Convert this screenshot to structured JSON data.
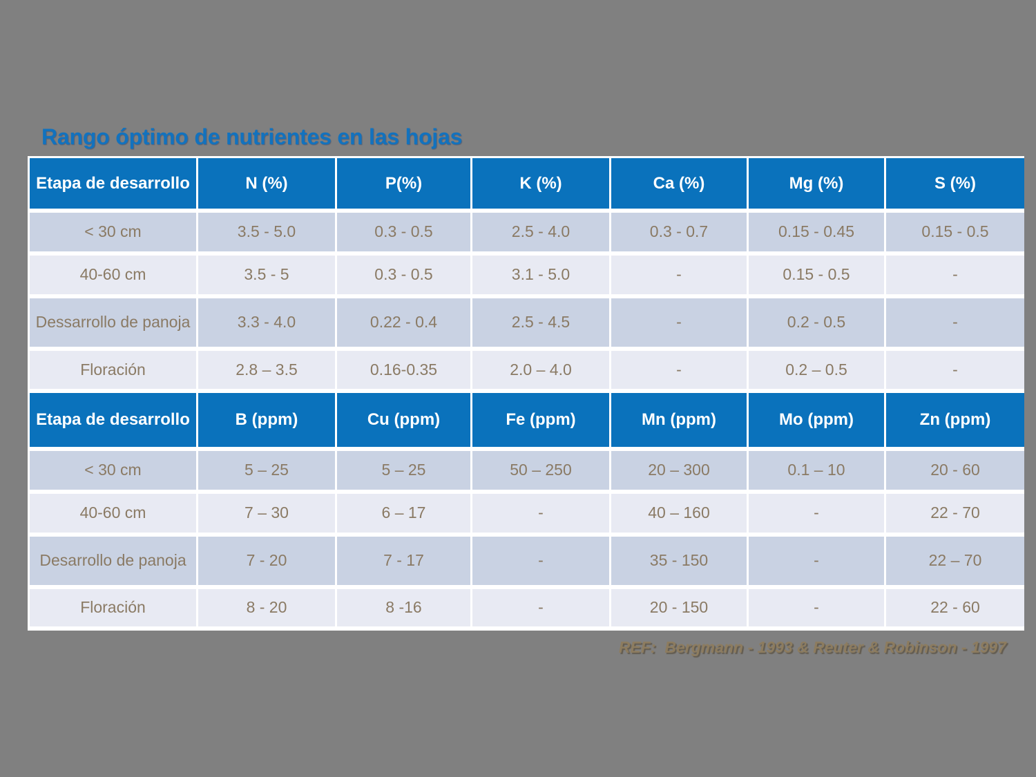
{
  "title": "Rango óptimo de nutrientes en las hojas",
  "colors": {
    "background": "#808080",
    "title_blue": "#1272BE",
    "header_background": "#0A72BC",
    "header_text": "#FFFFFF",
    "row_dark": "#C9D2E3",
    "row_light": "#E8EAF3",
    "cell_text": "#8A7A64",
    "grid": "#FFFFFF",
    "reference_text": "#8D7C5F"
  },
  "tables": [
    {
      "headers": [
        "Etapa de desarrollo",
        "N (%)",
        "P(%)",
        "K (%)",
        "Ca (%)",
        "Mg (%)",
        "S (%)"
      ],
      "rows": [
        [
          "< 30 cm",
          "3.5 - 5.0",
          "0.3 - 0.5",
          "2.5 - 4.0",
          "0.3 - 0.7",
          "0.15 - 0.45",
          "0.15 - 0.5"
        ],
        [
          "40-60 cm",
          "3.5 - 5",
          "0.3 - 0.5",
          "3.1 - 5.0",
          "-",
          "0.15 - 0.5",
          "-"
        ],
        [
          "Dessarrollo de panoja",
          "3.3 - 4.0",
          "0.22 - 0.4",
          "2.5 - 4.5",
          "-",
          "0.2 - 0.5",
          "-"
        ],
        [
          "Floración",
          "2.8 – 3.5",
          "0.16-0.35",
          "2.0 – 4.0",
          "-",
          "0.2 – 0.5",
          "-"
        ]
      ]
    },
    {
      "headers": [
        "Etapa de desarrollo",
        "B (ppm)",
        "Cu (ppm)",
        "Fe (ppm)",
        "Mn (ppm)",
        "Mo (ppm)",
        "Zn (ppm)"
      ],
      "rows": [
        [
          "< 30 cm",
          "5 – 25",
          "5 – 25",
          "50 – 250",
          "20 – 300",
          "0.1 – 10",
          "20 - 60"
        ],
        [
          "40-60 cm",
          "7 – 30",
          "6 – 17",
          "-",
          "40 – 160",
          "-",
          "22 - 70"
        ],
        [
          "Desarrollo de panoja",
          "7 - 20",
          "7 - 17",
          "-",
          "35 - 150",
          "-",
          "22 – 70"
        ],
        [
          "Floración",
          "8 - 20",
          "8 -16",
          "-",
          "20 - 150",
          "-",
          "22 - 60"
        ]
      ]
    }
  ],
  "reference": "REF:  Bergmann - 1993 & Reuter & Robinson - 1997"
}
